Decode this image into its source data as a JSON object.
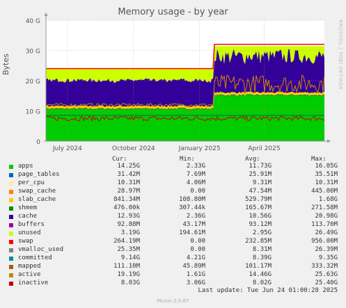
{
  "chart_data": {
    "type": "area",
    "title": "Memory usage - by year",
    "ylabel": "Bytes",
    "ylim": [
      0,
      40
    ],
    "y_unit": "G",
    "yticks": [
      "0",
      "10 G",
      "20 G",
      "30 G",
      "40 G"
    ],
    "ytick_values": [
      0,
      10,
      20,
      30,
      40
    ],
    "xticks": [
      "July 2024",
      "October 2024",
      "January 2025",
      "April 2025"
    ],
    "xtick_dates": [
      "2024-07-01",
      "2024-10-01",
      "2025-01-01",
      "2025-04-01"
    ],
    "x_range": [
      "2024-06-01",
      "2025-06-24"
    ],
    "grid": true,
    "approx_stack": [
      {
        "name": "apps",
        "color": "#00cc00",
        "values_before": 10.5,
        "values_after": 15.0
      },
      {
        "name": "shmem",
        "color": "#008800",
        "values_before": 0.3,
        "values_after": 0.3
      },
      {
        "name": "slab_cache",
        "color": "#ffcc00",
        "values_before": 0.8,
        "values_after": 0.8
      },
      {
        "name": "cache",
        "color": "#330099",
        "values_before": 8.5,
        "values_after": 12.0
      },
      {
        "name": "unused",
        "color": "#ccff00",
        "values_before": 3.2,
        "values_after": 3.2
      }
    ],
    "series_lines": [
      {
        "name": "inactive",
        "color": "#cc0000",
        "level_before": 7.5,
        "level_after": 7.5
      },
      {
        "name": "active",
        "color": "#cc8800",
        "level_before": 12.0,
        "level_after": 19.0
      },
      {
        "name": "committed",
        "color": "#006666",
        "level_before": 8.5,
        "level_after": 8.5
      },
      {
        "name": "swap",
        "color": "#ff0000",
        "level_before": 24.0,
        "level_after": 32.0
      }
    ],
    "totals": {
      "before": 23.8,
      "after": 31.4
    },
    "step_date": "2025-01-21"
  },
  "watermark": "RRDTOOL / TOBI OETIKER",
  "legend": {
    "headers": {
      "cur": "Cur:",
      "min": "Min:",
      "avg": "Avg:",
      "max": "Max:"
    },
    "rows": [
      {
        "name": "apps",
        "color": "#00cc00",
        "cur": "14.25G",
        "min": "2.33G",
        "avg": "11.73G",
        "max": "16.05G"
      },
      {
        "name": "page_tables",
        "color": "#0066b3",
        "cur": "31.42M",
        "min": "7.69M",
        "avg": "25.91M",
        "max": "35.51M"
      },
      {
        "name": "per_cpu",
        "color": "#ffeb99",
        "cur": "10.31M",
        "min": "4.06M",
        "avg": "9.31M",
        "max": "10.31M"
      },
      {
        "name": "swap_cache",
        "color": "#ff8000",
        "cur": "28.97M",
        "min": "0.00",
        "avg": "47.54M",
        "max": "445.00M"
      },
      {
        "name": "slab_cache",
        "color": "#ffcc00",
        "cur": "841.34M",
        "min": "108.80M",
        "avg": "529.79M",
        "max": "1.68G"
      },
      {
        "name": "shmem",
        "color": "#008f00",
        "cur": "476.00k",
        "min": "307.44k",
        "avg": "165.67M",
        "max": "271.58M"
      },
      {
        "name": "cache",
        "color": "#330099",
        "cur": "12.93G",
        "min": "2.36G",
        "avg": "10.56G",
        "max": "20.98G"
      },
      {
        "name": "buffers",
        "color": "#990099",
        "cur": "92.88M",
        "min": "43.17M",
        "avg": "93.12M",
        "max": "113.70M"
      },
      {
        "name": "unused",
        "color": "#ccff00",
        "cur": "3.19G",
        "min": "194.61M",
        "avg": "2.95G",
        "max": "26.49G"
      },
      {
        "name": "swap",
        "color": "#ff0000",
        "cur": "264.19M",
        "min": "0.00",
        "avg": "232.85M",
        "max": "956.00M"
      },
      {
        "name": "vmalloc_used",
        "color": "#808080",
        "cur": "25.35M",
        "min": "0.00",
        "avg": "8.31M",
        "max": "26.39M"
      },
      {
        "name": "committed",
        "color": "#008f8f",
        "cur": "9.14G",
        "min": "4.21G",
        "avg": "8.39G",
        "max": "9.35G"
      },
      {
        "name": "mapped",
        "color": "#b35a00",
        "cur": "111.10M",
        "min": "45.89M",
        "avg": "101.17M",
        "max": "333.32M"
      },
      {
        "name": "active",
        "color": "#b38f00",
        "cur": "19.19G",
        "min": "1.61G",
        "avg": "14.46G",
        "max": "25.63G"
      },
      {
        "name": "inactive",
        "color": "#c00000",
        "cur": "8.03G",
        "min": "3.06G",
        "avg": "8.02G",
        "max": "25.40G"
      }
    ]
  },
  "last_update": "Last update: Tue Jun 24 01:00:28 2025",
  "footer": "Munin 2.0.67"
}
